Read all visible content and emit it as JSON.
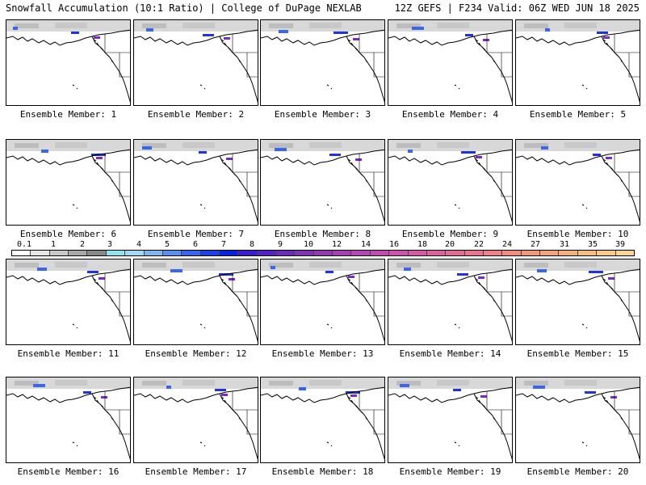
{
  "header": {
    "left": "Snowfall Accumulation (10:1 Ratio) | College of DuPage NEXLAB",
    "right": "12Z GEFS | F234 Valid: 06Z WED JUN 18 2025"
  },
  "panels": [
    {
      "label": "Ensemble Member: 1"
    },
    {
      "label": "Ensemble Member: 2"
    },
    {
      "label": "Ensemble Member: 3"
    },
    {
      "label": "Ensemble Member: 4"
    },
    {
      "label": "Ensemble Member: 5"
    },
    {
      "label": "Ensemble Member: 6"
    },
    {
      "label": "Ensemble Member: 7"
    },
    {
      "label": "Ensemble Member: 8"
    },
    {
      "label": "Ensemble Member: 9"
    },
    {
      "label": "Ensemble Member: 10"
    },
    {
      "label": "Ensemble Member: 11"
    },
    {
      "label": "Ensemble Member: 12"
    },
    {
      "label": "Ensemble Member: 13"
    },
    {
      "label": "Ensemble Member: 14"
    },
    {
      "label": "Ensemble Member: 15"
    },
    {
      "label": "Ensemble Member: 16"
    },
    {
      "label": "Ensemble Member: 17"
    },
    {
      "label": "Ensemble Member: 18"
    },
    {
      "label": "Ensemble Member: 19"
    },
    {
      "label": "Ensemble Member: 20"
    }
  ],
  "colorbar": {
    "ticks": [
      "0.1",
      "1",
      "2",
      "3",
      "4",
      "5",
      "6",
      "7",
      "8",
      "9",
      "10",
      "12",
      "14",
      "16",
      "18",
      "20",
      "22",
      "24",
      "27",
      "31",
      "35",
      "39"
    ],
    "colors": [
      "#ffffff",
      "#e6e6e6",
      "#c8c8c8",
      "#a8a8a8",
      "#888888",
      "#8fe3ef",
      "#a6d8f5",
      "#7fb6f0",
      "#5a8ff0",
      "#3a66ef",
      "#1f3fe8",
      "#0a22e0",
      "#3a1ccf",
      "#5523c4",
      "#6a2cb8",
      "#7f33b5",
      "#9339b4",
      "#a63fb6",
      "#b646b8",
      "#c24cb4",
      "#cd52ad",
      "#d659a6",
      "#de609e",
      "#e46a96",
      "#ea748f",
      "#ee8088",
      "#f08c80",
      "#f2987a",
      "#f4a478",
      "#f6b07a",
      "#f8bd80",
      "#f9c98a",
      "#fad596"
    ]
  }
}
